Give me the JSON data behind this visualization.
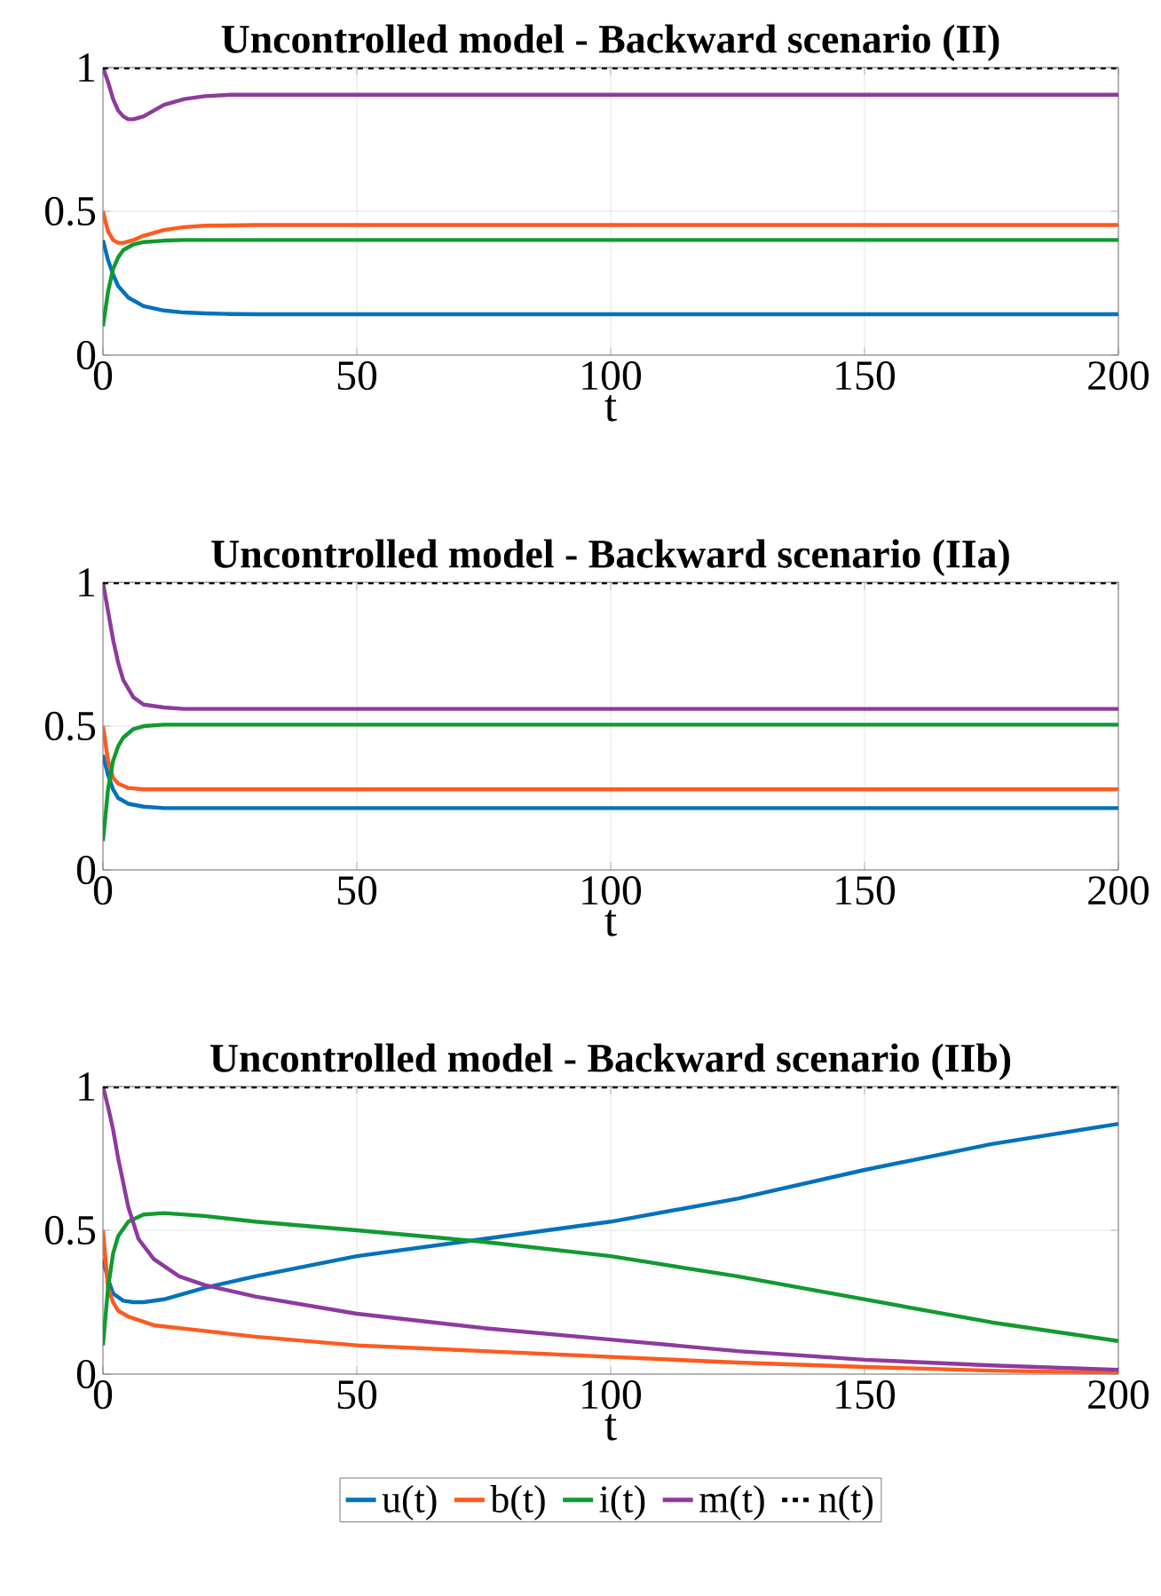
{
  "chart_data": [
    {
      "type": "line",
      "title": "Uncontrolled model - Backward scenario (II)",
      "xlabel": "t",
      "xlim": [
        0,
        200
      ],
      "ylim": [
        0,
        1
      ],
      "xticks": [
        0,
        50,
        100,
        150,
        200
      ],
      "yticks": [
        0,
        0.5,
        1
      ],
      "grid": true,
      "line_style": "solid",
      "series": [
        {
          "color": "#0072bd",
          "x": [
            0,
            1,
            2,
            3,
            5,
            8,
            12,
            16,
            20,
            25,
            30,
            50,
            100,
            150,
            200
          ],
          "values": [
            0.4,
            0.33,
            0.28,
            0.24,
            0.2,
            0.17,
            0.155,
            0.148,
            0.145,
            0.143,
            0.142,
            0.142,
            0.142,
            0.142,
            0.142
          ]
        },
        {
          "color": "#ff5a1f",
          "x": [
            0,
            1,
            2,
            3,
            4,
            6,
            8,
            12,
            16,
            20,
            30,
            50,
            100,
            150,
            200
          ],
          "values": [
            0.5,
            0.43,
            0.4,
            0.39,
            0.39,
            0.4,
            0.415,
            0.435,
            0.445,
            0.45,
            0.452,
            0.452,
            0.452,
            0.452,
            0.452
          ]
        },
        {
          "color": "#119a30",
          "x": [
            0,
            1,
            2,
            3,
            4,
            6,
            8,
            12,
            16,
            20,
            30,
            200
          ],
          "values": [
            0.1,
            0.22,
            0.3,
            0.34,
            0.365,
            0.385,
            0.393,
            0.398,
            0.4,
            0.4,
            0.4,
            0.4
          ]
        },
        {
          "color": "#8e3a9e",
          "x": [
            0,
            1,
            2,
            3,
            4,
            5,
            6,
            8,
            10,
            12,
            16,
            20,
            25,
            30,
            50,
            200
          ],
          "values": [
            1,
            0.95,
            0.89,
            0.85,
            0.83,
            0.82,
            0.82,
            0.83,
            0.85,
            0.87,
            0.89,
            0.9,
            0.905,
            0.905,
            0.905,
            0.905
          ]
        },
        {
          "color": "#000000",
          "line_style": "dashed",
          "x": [
            0,
            200
          ],
          "values": [
            1,
            1
          ]
        }
      ]
    },
    {
      "type": "line",
      "title": "Uncontrolled model - Backward scenario (IIa)",
      "xlabel": "t",
      "xlim": [
        0,
        200
      ],
      "ylim": [
        0,
        1
      ],
      "xticks": [
        0,
        50,
        100,
        150,
        200
      ],
      "yticks": [
        0,
        0.5,
        1
      ],
      "grid": true,
      "line_style": "solid",
      "series": [
        {
          "color": "#0072bd",
          "x": [
            0,
            1,
            2,
            3,
            5,
            8,
            12,
            20,
            200
          ],
          "values": [
            0.4,
            0.33,
            0.28,
            0.25,
            0.23,
            0.22,
            0.215,
            0.215,
            0.215
          ]
        },
        {
          "color": "#ff5a1f",
          "x": [
            0,
            1,
            2,
            3,
            5,
            8,
            12,
            200
          ],
          "values": [
            0.5,
            0.38,
            0.32,
            0.3,
            0.285,
            0.28,
            0.28,
            0.28
          ]
        },
        {
          "color": "#119a30",
          "x": [
            0,
            1,
            2,
            3,
            4,
            6,
            8,
            12,
            20,
            200
          ],
          "values": [
            0.1,
            0.28,
            0.38,
            0.43,
            0.46,
            0.49,
            0.5,
            0.505,
            0.505,
            0.505
          ]
        },
        {
          "color": "#8e3a9e",
          "x": [
            0,
            1,
            2,
            3,
            4,
            6,
            8,
            12,
            16,
            20,
            200
          ],
          "values": [
            1,
            0.9,
            0.8,
            0.72,
            0.66,
            0.6,
            0.575,
            0.565,
            0.56,
            0.56,
            0.56
          ]
        },
        {
          "color": "#000000",
          "line_style": "dashed",
          "x": [
            0,
            200
          ],
          "values": [
            1,
            1
          ]
        }
      ]
    },
    {
      "type": "line",
      "title": "Uncontrolled model - Backward scenario (IIb)",
      "xlabel": "t",
      "xlim": [
        0,
        200
      ],
      "ylim": [
        0,
        1
      ],
      "xticks": [
        0,
        50,
        100,
        150,
        200
      ],
      "yticks": [
        0,
        0.5,
        1
      ],
      "grid": true,
      "line_style": "solid",
      "legend": "bottom",
      "series": [
        {
          "name": "u(t)",
          "color": "#0072bd",
          "x": [
            0,
            1,
            2,
            4,
            6,
            8,
            12,
            20,
            30,
            50,
            75,
            100,
            125,
            150,
            175,
            200
          ],
          "values": [
            0.4,
            0.33,
            0.28,
            0.255,
            0.25,
            0.25,
            0.26,
            0.3,
            0.34,
            0.41,
            0.47,
            0.53,
            0.61,
            0.71,
            0.8,
            0.87
          ]
        },
        {
          "name": "b(t)",
          "color": "#ff5a1f",
          "x": [
            0,
            1,
            2,
            3,
            5,
            10,
            20,
            30,
            50,
            75,
            100,
            125,
            150,
            175,
            200
          ],
          "values": [
            0.5,
            0.3,
            0.25,
            0.22,
            0.2,
            0.17,
            0.15,
            0.13,
            0.1,
            0.08,
            0.06,
            0.04,
            0.025,
            0.012,
            0.005
          ]
        },
        {
          "name": "i(t)",
          "color": "#119a30",
          "x": [
            0,
            1,
            2,
            3,
            5,
            8,
            12,
            20,
            30,
            50,
            75,
            100,
            125,
            150,
            175,
            200
          ],
          "values": [
            0.1,
            0.3,
            0.42,
            0.48,
            0.53,
            0.555,
            0.56,
            0.55,
            0.53,
            0.5,
            0.46,
            0.41,
            0.34,
            0.26,
            0.18,
            0.115
          ]
        },
        {
          "name": "m(t)",
          "color": "#8e3a9e",
          "x": [
            0,
            1,
            2,
            3,
            5,
            7,
            10,
            15,
            20,
            30,
            50,
            75,
            100,
            125,
            150,
            175,
            200
          ],
          "values": [
            1,
            0.93,
            0.85,
            0.75,
            0.58,
            0.47,
            0.4,
            0.34,
            0.31,
            0.27,
            0.21,
            0.16,
            0.12,
            0.08,
            0.05,
            0.03,
            0.015
          ]
        },
        {
          "name": "n(t)",
          "color": "#000000",
          "line_style": "dashed",
          "x": [
            0,
            200
          ],
          "values": [
            1,
            1
          ]
        }
      ]
    }
  ]
}
